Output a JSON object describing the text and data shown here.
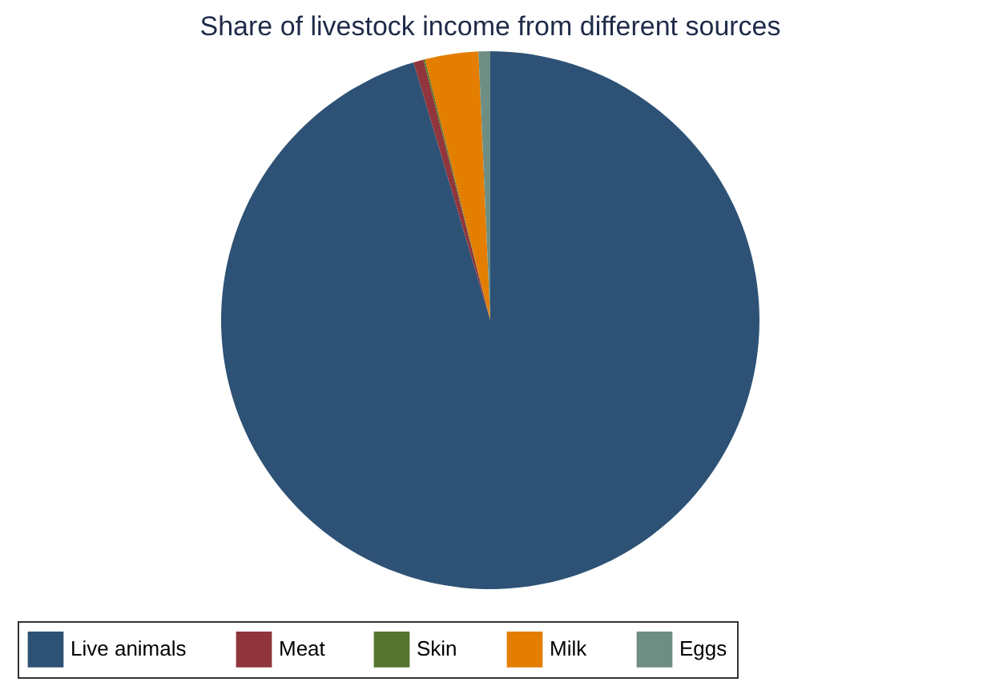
{
  "chart_data": {
    "type": "pie",
    "title": "Share of livestock income from different sources",
    "categories": [
      "Live animals",
      "Meat",
      "Skin",
      "Milk",
      "Eggs"
    ],
    "values": [
      95.4,
      0.6,
      0.1,
      3.2,
      0.7
    ],
    "colors": [
      "#2d5275",
      "#90353b",
      "#55752f",
      "#e37e00",
      "#6e8e84"
    ],
    "legend": "bottom"
  }
}
